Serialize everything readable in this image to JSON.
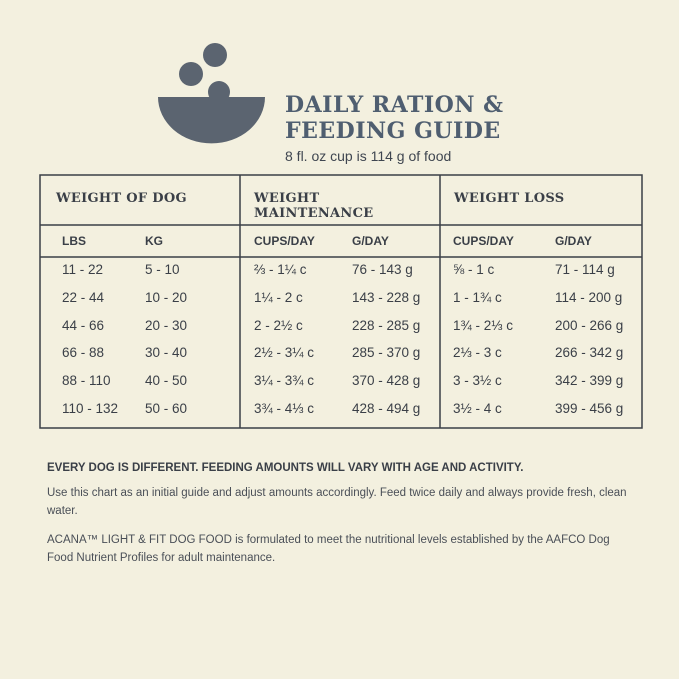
{
  "header": {
    "title_lines": [
      "DAILY RATION &",
      "FEEDING GUIDE"
    ],
    "subtitle": "8 fl. oz cup is 114 g of food"
  },
  "table": {
    "groups": [
      "WEIGHT OF DOG",
      "WEIGHT MAINTENANCE",
      "WEIGHT LOSS"
    ],
    "subheaders": [
      "LBS",
      "KG",
      "CUPS/DAY",
      "G/DAY",
      "CUPS/DAY",
      "G/DAY"
    ],
    "rows": [
      [
        "11 - 22",
        "5 - 10",
        "⅔ - 1¼ c",
        "76 - 143 g",
        "⅝ - 1 c",
        "71 - 114 g"
      ],
      [
        "22 - 44",
        "10 - 20",
        "1¼ - 2 c",
        "143 - 228 g",
        "1 - 1¾ c",
        "114 - 200 g"
      ],
      [
        "44 - 66",
        "20 - 30",
        "2 - 2½ c",
        "228 - 285 g",
        "1¾ - 2⅓ c",
        "200 - 266 g"
      ],
      [
        "66 - 88",
        "30 - 40",
        "2½ - 3¼ c",
        "285 - 370 g",
        "2⅓ - 3 c",
        "266 - 342 g"
      ],
      [
        "88 - 110",
        "40 - 50",
        "3¼ - 3¾ c",
        "370 - 428 g",
        "3 - 3½ c",
        "342 - 399 g"
      ],
      [
        "110 - 132",
        "50 - 60",
        "3¾ - 4⅓ c",
        "428 - 494 g",
        "3½ - 4 c",
        "399 - 456 g"
      ]
    ]
  },
  "notes": {
    "heading": "EVERY DOG IS DIFFERENT. FEEDING AMOUNTS WILL VARY WITH AGE AND ACTIVITY.",
    "guide": "Use this chart as an initial guide and adjust amounts accordingly. Feed twice daily and always provide fresh, clean water.",
    "disclaimer": "ACANA™ LIGHT & FIT DOG FOOD is formulated to meet the nutritional levels established by the AAFCO Dog Food Nutrient Profiles for adult maintenance."
  }
}
